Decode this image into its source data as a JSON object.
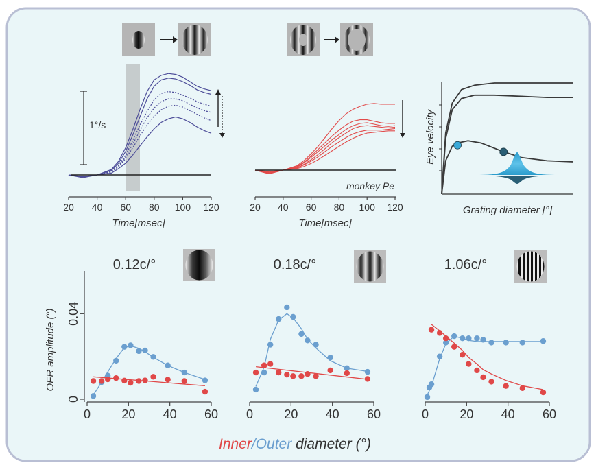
{
  "colors": {
    "panel_bg": "#eaf6f8",
    "panel_border": "#b9bfd4",
    "blue_traces": "#4d4d99",
    "red_traces": "#e24a4a",
    "gray_shade": "#c6cccd",
    "outer_blue": "#6b9fcf",
    "inner_red": "#e04848",
    "model_light": "#3aa9d8",
    "model_dark": "#2a5f76"
  },
  "top": {
    "scale_bar_label": "1°/s",
    "monkey_label": "monkey Pe",
    "time_label": "Time[msec]",
    "model_ylabel": "Eye velocity",
    "model_xlabel": "Grating diameter [°]"
  },
  "bottom": {
    "ylabel": "OFR amplitude (°)",
    "xlabel_inner": "Inner",
    "xlabel_sep": "/",
    "xlabel_outer": "Outer",
    "xlabel_rest": " diameter (°)",
    "sf_labels": [
      "0.12c/°",
      "0.18c/°",
      "1.06c/°"
    ]
  },
  "chart_data": [
    {
      "type": "line",
      "panel": "top-left",
      "xlabel": "Time[msec]",
      "xlim": [
        20,
        120
      ],
      "xticks": [
        20,
        40,
        60,
        80,
        100,
        120
      ],
      "shaded_interval": [
        60,
        70
      ],
      "scale_bar": "1°/s",
      "series": [
        {
          "style": "solid",
          "x": [
            20,
            30,
            40,
            50,
            55,
            60,
            65,
            70,
            75,
            80,
            85,
            90,
            95,
            100,
            105,
            110,
            115,
            120
          ],
          "y": [
            0.0,
            -0.02,
            0.0,
            0.06,
            0.15,
            0.3,
            0.5,
            0.72,
            0.92,
            1.05,
            1.1,
            1.12,
            1.11,
            1.08,
            1.03,
            0.98,
            0.95,
            0.93
          ]
        },
        {
          "style": "solid",
          "x": [
            20,
            30,
            40,
            50,
            55,
            60,
            65,
            70,
            75,
            80,
            85,
            90,
            95,
            100,
            105,
            110,
            115,
            120
          ],
          "y": [
            0.0,
            -0.02,
            0.0,
            0.05,
            0.13,
            0.26,
            0.44,
            0.64,
            0.84,
            0.98,
            1.05,
            1.07,
            1.06,
            1.03,
            0.99,
            0.94,
            0.91,
            0.89
          ]
        },
        {
          "style": "dotted",
          "x": [
            20,
            30,
            40,
            50,
            55,
            60,
            65,
            70,
            75,
            80,
            85,
            90,
            95,
            100,
            105,
            110,
            115,
            120
          ],
          "y": [
            0.0,
            -0.02,
            0.0,
            0.04,
            0.11,
            0.22,
            0.38,
            0.55,
            0.7,
            0.83,
            0.9,
            0.92,
            0.91,
            0.88,
            0.85,
            0.81,
            0.78,
            0.76
          ]
        },
        {
          "style": "dotted",
          "x": [
            20,
            30,
            40,
            50,
            55,
            60,
            65,
            70,
            75,
            80,
            85,
            90,
            95,
            100,
            105,
            110,
            115,
            120
          ],
          "y": [
            0.0,
            -0.02,
            0.0,
            0.04,
            0.1,
            0.2,
            0.34,
            0.49,
            0.63,
            0.74,
            0.81,
            0.84,
            0.84,
            0.82,
            0.78,
            0.74,
            0.71,
            0.69
          ]
        },
        {
          "style": "dotted",
          "x": [
            20,
            30,
            40,
            50,
            55,
            60,
            65,
            70,
            75,
            80,
            85,
            90,
            95,
            100,
            105,
            110,
            115,
            120
          ],
          "y": [
            0.0,
            -0.02,
            0.0,
            0.03,
            0.09,
            0.18,
            0.3,
            0.43,
            0.55,
            0.65,
            0.72,
            0.76,
            0.77,
            0.75,
            0.71,
            0.67,
            0.63,
            0.6
          ]
        },
        {
          "style": "solid",
          "x": [
            20,
            30,
            40,
            50,
            55,
            60,
            65,
            70,
            75,
            80,
            85,
            90,
            95,
            100,
            105,
            110,
            115,
            120
          ],
          "y": [
            0.0,
            -0.03,
            0.0,
            0.02,
            0.07,
            0.13,
            0.22,
            0.32,
            0.42,
            0.51,
            0.58,
            0.62,
            0.64,
            0.62,
            0.58,
            0.53,
            0.49,
            0.46
          ]
        }
      ]
    },
    {
      "type": "line",
      "panel": "top-middle",
      "xlabel": "Time[msec]",
      "xlim": [
        20,
        120
      ],
      "xticks": [
        20,
        40,
        60,
        80,
        100,
        120
      ],
      "series": [
        {
          "x": [
            20,
            30,
            40,
            50,
            55,
            60,
            65,
            70,
            75,
            80,
            85,
            90,
            95,
            100,
            105,
            110,
            115,
            120
          ],
          "y": [
            0.0,
            -0.02,
            0.0,
            0.06,
            0.13,
            0.22,
            0.32,
            0.44,
            0.56,
            0.67,
            0.76,
            0.82,
            0.86,
            0.89,
            0.9,
            0.89,
            0.89,
            0.89
          ]
        },
        {
          "x": [
            20,
            30,
            40,
            50,
            55,
            60,
            65,
            70,
            75,
            80,
            85,
            90,
            95,
            100,
            105,
            110,
            115,
            120
          ],
          "y": [
            0.0,
            -0.03,
            0.0,
            0.05,
            0.11,
            0.19,
            0.28,
            0.37,
            0.46,
            0.54,
            0.61,
            0.66,
            0.68,
            0.68,
            0.66,
            0.64,
            0.63,
            0.63
          ]
        },
        {
          "x": [
            20,
            30,
            40,
            50,
            55,
            60,
            65,
            70,
            75,
            80,
            85,
            90,
            95,
            100,
            105,
            110,
            115,
            120
          ],
          "y": [
            0.0,
            -0.04,
            0.0,
            0.04,
            0.1,
            0.17,
            0.25,
            0.33,
            0.41,
            0.48,
            0.55,
            0.6,
            0.63,
            0.64,
            0.62,
            0.6,
            0.59,
            0.6
          ]
        },
        {
          "x": [
            20,
            30,
            40,
            50,
            55,
            60,
            65,
            70,
            75,
            80,
            85,
            90,
            95,
            100,
            105,
            110,
            115,
            120
          ],
          "y": [
            0.0,
            -0.04,
            0.0,
            0.03,
            0.08,
            0.14,
            0.21,
            0.29,
            0.37,
            0.44,
            0.5,
            0.56,
            0.59,
            0.6,
            0.59,
            0.58,
            0.57,
            0.58
          ]
        },
        {
          "x": [
            20,
            30,
            40,
            50,
            55,
            60,
            65,
            70,
            75,
            80,
            85,
            90,
            95,
            100,
            105,
            110,
            115,
            120
          ],
          "y": [
            0.0,
            -0.05,
            0.0,
            0.03,
            0.07,
            0.12,
            0.18,
            0.25,
            0.32,
            0.38,
            0.44,
            0.49,
            0.52,
            0.54,
            0.54,
            0.54,
            0.55,
            0.56
          ]
        },
        {
          "x": [
            20,
            30,
            40,
            50,
            55,
            60,
            65,
            70,
            75,
            80,
            85,
            90,
            95,
            100,
            105,
            110,
            115,
            120
          ],
          "y": [
            0.0,
            -0.05,
            0.0,
            0.02,
            0.05,
            0.09,
            0.14,
            0.2,
            0.26,
            0.32,
            0.38,
            0.43,
            0.47,
            0.5,
            0.51,
            0.52,
            0.53,
            0.53
          ]
        }
      ]
    },
    {
      "type": "line",
      "panel": "top-right",
      "xlabel": "Grating diameter [°]",
      "ylabel": "Eye velocity",
      "series": [
        {
          "x": [
            0,
            0.03,
            0.08,
            0.15,
            0.25,
            0.4,
            0.6,
            0.8,
            1.0
          ],
          "y": [
            0,
            0.55,
            0.82,
            0.94,
            0.98,
            1.0,
            1.0,
            1.0,
            1.0
          ]
        },
        {
          "x": [
            0,
            0.03,
            0.08,
            0.15,
            0.25,
            0.4,
            0.6,
            0.8,
            1.0
          ],
          "y": [
            0,
            0.5,
            0.76,
            0.86,
            0.89,
            0.89,
            0.88,
            0.87,
            0.87
          ]
        },
        {
          "x": [
            0,
            0.03,
            0.08,
            0.12,
            0.2,
            0.3,
            0.45,
            0.6,
            0.8,
            1.0
          ],
          "y": [
            0,
            0.3,
            0.43,
            0.46,
            0.48,
            0.46,
            0.39,
            0.33,
            0.3,
            0.29
          ]
        }
      ],
      "markers": [
        {
          "x": 0.12,
          "y": 0.44,
          "color": "#3aa9d8"
        },
        {
          "x": 0.47,
          "y": 0.38,
          "color": "#2a5f76"
        }
      ]
    },
    {
      "type": "scatter",
      "panel": "bottom-left",
      "title": "0.12c/°",
      "xlim": [
        0,
        60
      ],
      "ylim": [
        0,
        0.06
      ],
      "xticks": [
        0,
        20,
        40,
        60
      ],
      "yticks": [
        0,
        0.04
      ],
      "ylabel": "OFR amplitude (°)",
      "series": [
        {
          "name": "Outer",
          "x": [
            3,
            7,
            10,
            14,
            18,
            21,
            25,
            28,
            32,
            39,
            47,
            57
          ],
          "y": [
            0.0015,
            0.008,
            0.011,
            0.018,
            0.0245,
            0.0252,
            0.0225,
            0.0228,
            0.0198,
            0.0158,
            0.0125,
            0.0088
          ],
          "fit_x": [
            3,
            7,
            10,
            14,
            18,
            21,
            25,
            28,
            32,
            39,
            47,
            57
          ],
          "fit_y": [
            0.002,
            0.008,
            0.0128,
            0.019,
            0.0242,
            0.025,
            0.0238,
            0.0222,
            0.0196,
            0.0158,
            0.0125,
            0.0092
          ]
        },
        {
          "name": "Inner",
          "x": [
            3,
            7,
            10,
            14,
            18,
            21,
            25,
            28,
            32,
            39,
            47,
            57
          ],
          "y": [
            0.0085,
            0.0085,
            0.0093,
            0.0099,
            0.0087,
            0.0077,
            0.0085,
            0.0088,
            0.0105,
            0.0092,
            0.0085,
            0.0035
          ],
          "fit_x": [
            3,
            57
          ],
          "fit_y": [
            0.0105,
            0.0063
          ]
        }
      ]
    },
    {
      "type": "scatter",
      "panel": "bottom-middle",
      "title": "0.18c/°",
      "xlim": [
        0,
        60
      ],
      "ylim": [
        0,
        0.06
      ],
      "xticks": [
        0,
        20,
        40,
        60
      ],
      "series": [
        {
          "name": "Outer",
          "x": [
            3,
            7,
            10,
            14,
            18,
            21,
            25,
            28,
            32,
            39,
            47,
            57
          ],
          "y": [
            0.0045,
            0.0125,
            0.0255,
            0.0375,
            0.043,
            0.0385,
            0.0305,
            0.0275,
            0.0255,
            0.0195,
            0.0145,
            0.0128
          ],
          "fit_x": [
            3,
            7,
            10,
            14,
            18,
            21,
            25,
            28,
            32,
            39,
            47,
            57
          ],
          "fit_y": [
            0.006,
            0.015,
            0.028,
            0.037,
            0.04,
            0.038,
            0.033,
            0.028,
            0.024,
            0.018,
            0.0145,
            0.013
          ]
        },
        {
          "name": "Inner",
          "x": [
            3,
            7,
            10,
            14,
            18,
            21,
            25,
            28,
            32,
            39,
            47,
            57
          ],
          "y": [
            0.0125,
            0.0158,
            0.0165,
            0.0125,
            0.0115,
            0.0108,
            0.0108,
            0.0118,
            0.0108,
            0.0135,
            0.0122,
            0.0095
          ],
          "fit_x": [
            3,
            57
          ],
          "fit_y": [
            0.0152,
            0.0093
          ]
        }
      ]
    },
    {
      "type": "scatter",
      "panel": "bottom-right",
      "title": "1.06c/°",
      "xlim": [
        0,
        60
      ],
      "ylim": [
        0,
        0.06
      ],
      "xticks": [
        0,
        20,
        40,
        60
      ],
      "series": [
        {
          "name": "Outer",
          "x": [
            1,
            2,
            3,
            7,
            10,
            14,
            18,
            21,
            25,
            28,
            32,
            39,
            47,
            57
          ],
          "y": [
            0.001,
            0.0055,
            0.007,
            0.02,
            0.0265,
            0.0295,
            0.0285,
            0.0285,
            0.0285,
            0.0278,
            0.0265,
            0.0265,
            0.0265,
            0.0272
          ],
          "fit_x": [
            0,
            3,
            7,
            10,
            14,
            18,
            21,
            25,
            28,
            32,
            39,
            47,
            57
          ],
          "fit_y": [
            0.0,
            0.006,
            0.019,
            0.026,
            0.0295,
            0.0285,
            0.0275,
            0.027,
            0.027,
            0.027,
            0.027,
            0.027,
            0.027
          ]
        },
        {
          "name": "Inner",
          "x": [
            3,
            7,
            10,
            14,
            18,
            21,
            25,
            28,
            32,
            39,
            47,
            57
          ],
          "y": [
            0.0325,
            0.031,
            0.0285,
            0.0245,
            0.0208,
            0.0165,
            0.0135,
            0.0103,
            0.0082,
            0.0062,
            0.0052,
            0.0032
          ],
          "fit_x": [
            3,
            7,
            10,
            14,
            18,
            21,
            25,
            28,
            32,
            39,
            47,
            57
          ],
          "fit_y": [
            0.035,
            0.032,
            0.0295,
            0.0262,
            0.0228,
            0.0195,
            0.0165,
            0.0138,
            0.0118,
            0.0088,
            0.0063,
            0.0045
          ]
        }
      ]
    }
  ]
}
